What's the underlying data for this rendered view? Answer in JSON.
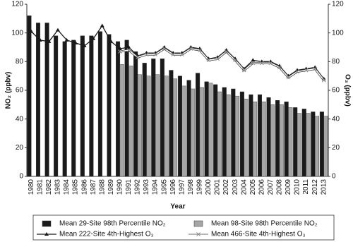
{
  "chart_data": {
    "type": "bar-line",
    "xlabel": "Year",
    "ylabel": "NO₂ (ppbv)",
    "y2label": "O₃ (ppbv)",
    "categories": [
      "1980",
      "1981",
      "1982",
      "1983",
      "1984",
      "1985",
      "1986",
      "1987",
      "1988",
      "1989",
      "1990",
      "1991",
      "1992",
      "1993",
      "1994",
      "1995",
      "1996",
      "1997",
      "1998",
      "1999",
      "2000",
      "2001",
      "2002",
      "2003",
      "2004",
      "2005",
      "2006",
      "2007",
      "2008",
      "2009",
      "2010",
      "2011",
      "2012",
      "2013"
    ],
    "ylim": [
      0,
      120
    ],
    "yticks": [
      0,
      20,
      40,
      60,
      80,
      100,
      120
    ],
    "y2lim": [
      0,
      120
    ],
    "y2ticks": [
      0,
      20,
      40,
      60,
      80,
      100,
      120
    ],
    "series": [
      {
        "name": "Mean 29-Site 98th Percentile NO₂",
        "kind": "bar",
        "color": "#1a1a1a",
        "values": [
          112,
          107,
          107,
          98,
          94,
          95,
          98,
          98,
          101,
          99,
          94,
          95,
          87,
          79,
          82,
          82,
          74,
          70,
          67,
          72,
          66,
          64,
          62,
          61,
          59,
          57,
          57,
          55,
          53,
          52,
          48,
          47,
          45,
          45
        ]
      },
      {
        "name": "Mean 98-Site 98th Percentile NO₂",
        "kind": "bar",
        "color": "#a6a6a6",
        "values": [
          null,
          null,
          null,
          null,
          null,
          null,
          null,
          null,
          null,
          null,
          78,
          77,
          71,
          70,
          71,
          70,
          68,
          63,
          61,
          62,
          65,
          59,
          57,
          56,
          54,
          52,
          52,
          50,
          50,
          48,
          44,
          44,
          42,
          42
        ]
      },
      {
        "name": "Mean 222-Site 4th-Highest O₃",
        "kind": "line",
        "axis": "y2",
        "color": "#1a1a1a",
        "marker": "triangle",
        "values": [
          101,
          95,
          94,
          102,
          95,
          93,
          91,
          96,
          105,
          94,
          89,
          90,
          84,
          86,
          86,
          90,
          86,
          86,
          90,
          89,
          82,
          83,
          88,
          82,
          75,
          81,
          80,
          80,
          77,
          70,
          74,
          75,
          76,
          68
        ]
      },
      {
        "name": "Mean 466-Site 4th-Highest O₃",
        "kind": "line",
        "axis": "y2",
        "color": "#8c8c8c",
        "marker": "x",
        "values": [
          null,
          null,
          null,
          null,
          null,
          null,
          null,
          null,
          null,
          null,
          87,
          88,
          83,
          85,
          85,
          89,
          85,
          85,
          89,
          88,
          81,
          82,
          87,
          81,
          74,
          79,
          79,
          79,
          76,
          69,
          73,
          74,
          75,
          67
        ]
      }
    ]
  }
}
